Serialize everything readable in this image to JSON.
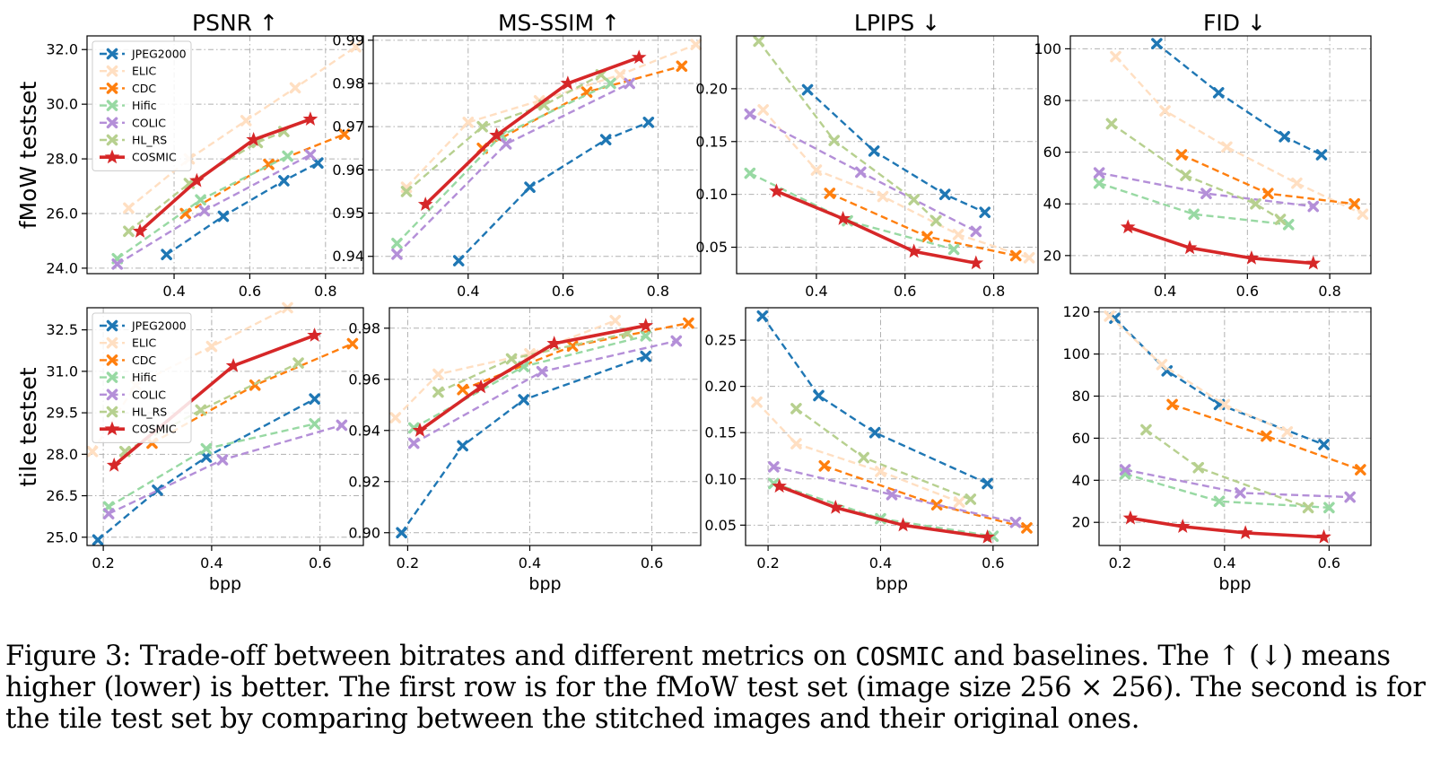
{
  "figure": {
    "column_titles": [
      "PSNR ↑",
      "MS-SSIM ↑",
      "LPIPS ↓",
      "FID ↓"
    ],
    "row_labels": [
      "fMoW testset",
      "tile testset"
    ],
    "xlabel": "bpp",
    "legend": [
      "JPEG2000",
      "ELIC",
      "CDC",
      "Hific",
      "COLIC",
      "HL_RS",
      "COSMIC"
    ],
    "colors": {
      "JPEG2000": "#1f77b4",
      "ELIC": "#ffdfc2",
      "CDC": "#ff7f0e",
      "Hific": "#98d9a3",
      "COLIC": "#b48fd8",
      "HL_RS": "#b7d08f",
      "COSMIC": "#d62728"
    }
  },
  "caption": {
    "part1": "Figure 3: Trade-off between bitrates and different metrics on ",
    "model": "COSMIC",
    "part2": " and baselines. The ↑ (↓) means higher (lower) is better. The first row is for the fMoW test set (image size 256 × 256). The second is for the tile test set by comparing between the stitched images and their original ones."
  },
  "chart_data": [
    {
      "type": "line",
      "title": "PSNR ↑",
      "ylabel": "fMoW testset",
      "xlabel": "",
      "xlim": [
        0.17,
        0.9
      ],
      "ylim": [
        23.8,
        32.5
      ],
      "xticks": [
        0.4,
        0.6,
        0.8
      ],
      "yticks": [
        24.0,
        26.0,
        28.0,
        30.0,
        32.0
      ],
      "ytick_decimals": 1,
      "grid": true,
      "legend": "top-left",
      "series": [
        {
          "name": "JPEG2000",
          "x": [
            0.38,
            0.53,
            0.69,
            0.78
          ],
          "y": [
            24.5,
            25.9,
            27.2,
            27.85
          ]
        },
        {
          "name": "ELIC",
          "x": [
            0.28,
            0.44,
            0.59,
            0.72,
            0.88
          ],
          "y": [
            26.2,
            28.0,
            29.4,
            30.6,
            32.1
          ]
        },
        {
          "name": "CDC",
          "x": [
            0.43,
            0.65,
            0.85
          ],
          "y": [
            26.0,
            27.8,
            28.9
          ]
        },
        {
          "name": "Hific",
          "x": [
            0.25,
            0.47,
            0.7
          ],
          "y": [
            24.35,
            26.5,
            28.1
          ]
        },
        {
          "name": "COLIC",
          "x": [
            0.25,
            0.48,
            0.76
          ],
          "y": [
            24.15,
            26.1,
            28.15
          ]
        },
        {
          "name": "HL_RS",
          "x": [
            0.28,
            0.44,
            0.62,
            0.69
          ],
          "y": [
            25.35,
            27.1,
            28.6,
            29.0
          ]
        },
        {
          "name": "COSMIC",
          "x": [
            0.31,
            0.46,
            0.61,
            0.76
          ],
          "y": [
            25.35,
            27.2,
            28.7,
            29.45
          ]
        }
      ]
    },
    {
      "type": "line",
      "title": "MS-SSIM ↑",
      "ylabel": "",
      "xlabel": "",
      "xlim": [
        0.2,
        0.89
      ],
      "ylim": [
        0.936,
        0.991
      ],
      "xticks": [
        0.4,
        0.6,
        0.8
      ],
      "yticks": [
        0.94,
        0.95,
        0.96,
        0.97,
        0.98,
        0.99
      ],
      "ytick_decimals": 2,
      "grid": true,
      "legend": "",
      "series": [
        {
          "name": "JPEG2000",
          "x": [
            0.38,
            0.53,
            0.69,
            0.78
          ],
          "y": [
            0.939,
            0.956,
            0.967,
            0.971
          ]
        },
        {
          "name": "ELIC",
          "x": [
            0.27,
            0.4,
            0.55,
            0.72,
            0.88
          ],
          "y": [
            0.956,
            0.971,
            0.976,
            0.982,
            0.989
          ]
        },
        {
          "name": "CDC",
          "x": [
            0.43,
            0.65,
            0.85
          ],
          "y": [
            0.965,
            0.978,
            0.984
          ]
        },
        {
          "name": "Hific",
          "x": [
            0.25,
            0.47,
            0.7
          ],
          "y": [
            0.943,
            0.968,
            0.98
          ]
        },
        {
          "name": "COLIC",
          "x": [
            0.25,
            0.48,
            0.74
          ],
          "y": [
            0.9405,
            0.966,
            0.98
          ]
        },
        {
          "name": "HL_RS",
          "x": [
            0.27,
            0.43,
            0.56,
            0.68
          ],
          "y": [
            0.955,
            0.97,
            0.975,
            0.982
          ]
        },
        {
          "name": "COSMIC",
          "x": [
            0.31,
            0.46,
            0.61,
            0.76
          ],
          "y": [
            0.952,
            0.968,
            0.98,
            0.986
          ]
        }
      ]
    },
    {
      "type": "line",
      "title": "LPIPS ↓",
      "ylabel": "",
      "xlabel": "",
      "xlim": [
        0.22,
        0.9
      ],
      "ylim": [
        0.025,
        0.25
      ],
      "xticks": [
        0.4,
        0.6,
        0.8
      ],
      "yticks": [
        0.05,
        0.1,
        0.15,
        0.2
      ],
      "ytick_decimals": 2,
      "grid": true,
      "legend": "",
      "series": [
        {
          "name": "JPEG2000",
          "x": [
            0.38,
            0.53,
            0.69,
            0.78
          ],
          "y": [
            0.199,
            0.141,
            0.1,
            0.083
          ]
        },
        {
          "name": "ELIC",
          "x": [
            0.28,
            0.4,
            0.55,
            0.72,
            0.88
          ],
          "y": [
            0.18,
            0.123,
            0.098,
            0.062,
            0.04
          ]
        },
        {
          "name": "CDC",
          "x": [
            0.43,
            0.65,
            0.85
          ],
          "y": [
            0.101,
            0.06,
            0.042
          ]
        },
        {
          "name": "Hific",
          "x": [
            0.25,
            0.47,
            0.71
          ],
          "y": [
            0.12,
            0.075,
            0.048
          ]
        },
        {
          "name": "COLIC",
          "x": [
            0.25,
            0.5,
            0.76
          ],
          "y": [
            0.176,
            0.121,
            0.065
          ]
        },
        {
          "name": "HL_RS",
          "x": [
            0.27,
            0.44,
            0.62,
            0.67
          ],
          "y": [
            0.245,
            0.151,
            0.095,
            0.075
          ]
        },
        {
          "name": "COSMIC",
          "x": [
            0.31,
            0.46,
            0.62,
            0.76
          ],
          "y": [
            0.103,
            0.077,
            0.046,
            0.035
          ]
        }
      ]
    },
    {
      "type": "line",
      "title": "FID ↓",
      "ylabel": "",
      "xlabel": "",
      "xlim": [
        0.17,
        0.9
      ],
      "ylim": [
        13,
        105
      ],
      "xticks": [
        0.4,
        0.6,
        0.8
      ],
      "yticks": [
        20,
        40,
        60,
        80,
        100
      ],
      "ytick_decimals": 0,
      "grid": true,
      "legend": "",
      "series": [
        {
          "name": "JPEG2000",
          "x": [
            0.38,
            0.53,
            0.69,
            0.78
          ],
          "y": [
            102,
            83,
            66,
            59
          ]
        },
        {
          "name": "ELIC",
          "x": [
            0.28,
            0.4,
            0.55,
            0.72,
            0.88
          ],
          "y": [
            97,
            76,
            62,
            48,
            36
          ]
        },
        {
          "name": "CDC",
          "x": [
            0.44,
            0.65,
            0.86
          ],
          "y": [
            59,
            44,
            40
          ]
        },
        {
          "name": "Hific",
          "x": [
            0.24,
            0.47,
            0.7
          ],
          "y": [
            48,
            36,
            32
          ]
        },
        {
          "name": "COLIC",
          "x": [
            0.24,
            0.5,
            0.76
          ],
          "y": [
            52,
            44,
            39
          ]
        },
        {
          "name": "HL_RS",
          "x": [
            0.27,
            0.45,
            0.62,
            0.68
          ],
          "y": [
            71,
            51,
            40,
            34
          ]
        },
        {
          "name": "COSMIC",
          "x": [
            0.31,
            0.46,
            0.61,
            0.76
          ],
          "y": [
            31,
            23,
            19,
            17
          ]
        }
      ]
    },
    {
      "type": "line",
      "title": "",
      "ylabel": "tile testset",
      "xlabel": "bpp",
      "xlim": [
        0.17,
        0.68
      ],
      "ylim": [
        24.7,
        33.3
      ],
      "xticks": [
        0.2,
        0.4,
        0.6
      ],
      "yticks": [
        25.0,
        26.5,
        28.0,
        29.5,
        31.0,
        32.5
      ],
      "ytick_decimals": 1,
      "grid": true,
      "legend": "top-left",
      "series": [
        {
          "name": "JPEG2000",
          "x": [
            0.19,
            0.3,
            0.39,
            0.59
          ],
          "y": [
            24.9,
            26.7,
            27.9,
            30.0
          ]
        },
        {
          "name": "ELIC",
          "x": [
            0.18,
            0.26,
            0.4,
            0.54
          ],
          "y": [
            28.1,
            30.5,
            31.9,
            33.3
          ]
        },
        {
          "name": "CDC",
          "x": [
            0.29,
            0.48,
            0.66
          ],
          "y": [
            28.4,
            30.5,
            32.0
          ]
        },
        {
          "name": "Hific",
          "x": [
            0.21,
            0.39,
            0.59
          ],
          "y": [
            26.1,
            28.2,
            29.1
          ]
        },
        {
          "name": "COLIC",
          "x": [
            0.21,
            0.42,
            0.64
          ],
          "y": [
            25.85,
            27.8,
            29.05
          ]
        },
        {
          "name": "HL_RS",
          "x": [
            0.24,
            0.38,
            0.56
          ],
          "y": [
            28.1,
            29.6,
            31.3
          ]
        },
        {
          "name": "COSMIC",
          "x": [
            0.22,
            0.44,
            0.59
          ],
          "y": [
            27.6,
            31.2,
            32.3
          ]
        }
      ]
    },
    {
      "type": "line",
      "title": "",
      "ylabel": "",
      "xlabel": "bpp",
      "xlim": [
        0.17,
        0.68
      ],
      "ylim": [
        0.895,
        0.988
      ],
      "xticks": [
        0.2,
        0.4,
        0.6
      ],
      "yticks": [
        0.9,
        0.92,
        0.94,
        0.96,
        0.98
      ],
      "ytick_decimals": 2,
      "grid": true,
      "legend": "",
      "series": [
        {
          "name": "JPEG2000",
          "x": [
            0.19,
            0.29,
            0.39,
            0.59
          ],
          "y": [
            0.9,
            0.934,
            0.952,
            0.969
          ]
        },
        {
          "name": "ELIC",
          "x": [
            0.18,
            0.25,
            0.4,
            0.54
          ],
          "y": [
            0.945,
            0.962,
            0.97,
            0.983
          ]
        },
        {
          "name": "CDC",
          "x": [
            0.29,
            0.47,
            0.66
          ],
          "y": [
            0.956,
            0.973,
            0.982
          ]
        },
        {
          "name": "Hific",
          "x": [
            0.21,
            0.39,
            0.59
          ],
          "y": [
            0.941,
            0.965,
            0.977
          ]
        },
        {
          "name": "COLIC",
          "x": [
            0.21,
            0.42,
            0.64
          ],
          "y": [
            0.935,
            0.963,
            0.975
          ]
        },
        {
          "name": "HL_RS",
          "x": [
            0.25,
            0.37,
            0.56
          ],
          "y": [
            0.955,
            0.968,
            0.978
          ]
        },
        {
          "name": "COSMIC",
          "x": [
            0.22,
            0.32,
            0.44,
            0.59
          ],
          "y": [
            0.94,
            0.957,
            0.974,
            0.981
          ]
        }
      ]
    },
    {
      "type": "line",
      "title": "",
      "ylabel": "",
      "xlabel": "bpp",
      "xlim": [
        0.16,
        0.68
      ],
      "ylim": [
        0.028,
        0.285
      ],
      "xticks": [
        0.2,
        0.4,
        0.6
      ],
      "yticks": [
        0.05,
        0.1,
        0.15,
        0.2,
        0.25
      ],
      "ytick_decimals": 2,
      "grid": true,
      "legend": "",
      "series": [
        {
          "name": "JPEG2000",
          "x": [
            0.19,
            0.29,
            0.39,
            0.59
          ],
          "y": [
            0.276,
            0.19,
            0.15,
            0.095
          ]
        },
        {
          "name": "ELIC",
          "x": [
            0.18,
            0.25,
            0.4,
            0.54
          ],
          "y": [
            0.183,
            0.138,
            0.108,
            0.075
          ]
        },
        {
          "name": "CDC",
          "x": [
            0.3,
            0.5,
            0.66
          ],
          "y": [
            0.114,
            0.072,
            0.047
          ]
        },
        {
          "name": "Hific",
          "x": [
            0.21,
            0.4,
            0.6
          ],
          "y": [
            0.095,
            0.057,
            0.038
          ]
        },
        {
          "name": "COLIC",
          "x": [
            0.21,
            0.42,
            0.64
          ],
          "y": [
            0.113,
            0.083,
            0.053
          ]
        },
        {
          "name": "HL_RS",
          "x": [
            0.25,
            0.37,
            0.56
          ],
          "y": [
            0.176,
            0.123,
            0.078
          ]
        },
        {
          "name": "COSMIC",
          "x": [
            0.22,
            0.32,
            0.44,
            0.59
          ],
          "y": [
            0.092,
            0.069,
            0.05,
            0.037
          ]
        }
      ]
    },
    {
      "type": "line",
      "title": "",
      "ylabel": "",
      "xlabel": "bpp",
      "xlim": [
        0.16,
        0.68
      ],
      "ylim": [
        9,
        122
      ],
      "xticks": [
        0.2,
        0.4,
        0.6
      ],
      "yticks": [
        20,
        40,
        60,
        80,
        100,
        120
      ],
      "ytick_decimals": 0,
      "grid": true,
      "legend": "",
      "series": [
        {
          "name": "JPEG2000",
          "x": [
            0.19,
            0.29,
            0.39,
            0.59
          ],
          "y": [
            117,
            92,
            76,
            57
          ]
        },
        {
          "name": "ELIC",
          "x": [
            0.18,
            0.28,
            0.4,
            0.52
          ],
          "y": [
            118,
            95,
            76,
            63
          ]
        },
        {
          "name": "CDC",
          "x": [
            0.3,
            0.48,
            0.66
          ],
          "y": [
            76,
            61,
            45
          ]
        },
        {
          "name": "Hific",
          "x": [
            0.21,
            0.39,
            0.6
          ],
          "y": [
            43,
            30,
            27
          ]
        },
        {
          "name": "COLIC",
          "x": [
            0.21,
            0.43,
            0.64
          ],
          "y": [
            45,
            34,
            32
          ]
        },
        {
          "name": "HL_RS",
          "x": [
            0.25,
            0.35,
            0.56
          ],
          "y": [
            64,
            46,
            27
          ]
        },
        {
          "name": "COSMIC",
          "x": [
            0.22,
            0.32,
            0.44,
            0.59
          ],
          "y": [
            22,
            18,
            15,
            13
          ]
        }
      ]
    }
  ]
}
